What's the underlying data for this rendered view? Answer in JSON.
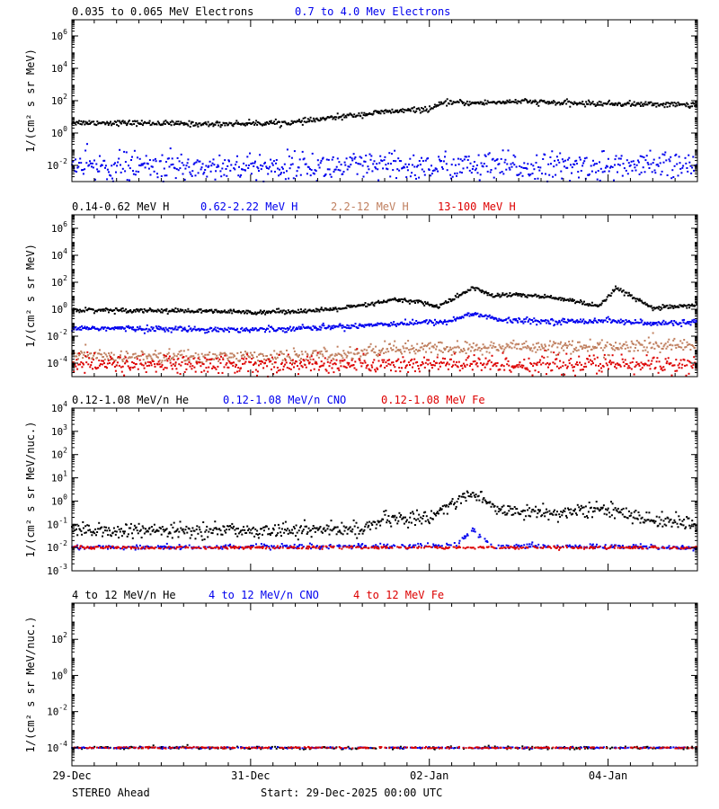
{
  "figure": {
    "footer_left": "STEREO Ahead",
    "footer_center": "Start: 29-Dec-2025 00:00 UTC",
    "x_ticks": [
      "29-Dec",
      "31-Dec",
      "02-Jan",
      "04-Jan"
    ],
    "x_tick_days": [
      0,
      2,
      4,
      6
    ],
    "x_range_days": [
      0,
      7.0
    ]
  },
  "chart_data": [
    {
      "type": "scatter",
      "ylabel": "1/(cm² s sr MeV)",
      "yscale": "log",
      "ylim_exp": [
        -3,
        7
      ],
      "y_ticks": [
        {
          "exp": -2
        },
        {
          "exp": 0
        },
        {
          "exp": 2
        },
        {
          "exp": 4
        },
        {
          "exp": 6
        }
      ],
      "series": [
        {
          "name": "0.035 to 0.065 MeV Electrons",
          "color": "#000000",
          "profile": [
            [
              0,
              4.5
            ],
            [
              1.0,
              4.0
            ],
            [
              1.5,
              3.5
            ],
            [
              2.5,
              4.5
            ],
            [
              3.0,
              10
            ],
            [
              3.5,
              20
            ],
            [
              4.0,
              30
            ],
            [
              4.2,
              80
            ],
            [
              4.5,
              70
            ],
            [
              5.0,
              90
            ],
            [
              5.5,
              70
            ],
            [
              6.0,
              65
            ],
            [
              7.0,
              55
            ]
          ],
          "spread": 0.08
        },
        {
          "name": "0.7 to 4.0 Mev Electrons",
          "color": "#0000ee",
          "profile": [
            [
              0,
              0.008
            ],
            [
              7.0,
              0.008
            ]
          ],
          "spread": 0.45
        }
      ]
    },
    {
      "type": "scatter",
      "ylabel": "1/(cm² s sr MeV)",
      "yscale": "log",
      "ylim_exp": [
        -5,
        7
      ],
      "y_ticks": [
        {
          "exp": -4
        },
        {
          "exp": -2
        },
        {
          "exp": 0
        },
        {
          "exp": 2
        },
        {
          "exp": 4
        },
        {
          "exp": 6
        }
      ],
      "series": [
        {
          "name": "0.14-0.62 MeV H",
          "color": "#000000",
          "profile": [
            [
              0,
              0.9
            ],
            [
              1.0,
              0.8
            ],
            [
              2.0,
              0.6
            ],
            [
              2.8,
              0.8
            ],
            [
              3.3,
              2.0
            ],
            [
              3.6,
              5.0
            ],
            [
              3.9,
              3.5
            ],
            [
              4.1,
              1.5
            ],
            [
              4.3,
              8
            ],
            [
              4.5,
              40
            ],
            [
              4.7,
              10
            ],
            [
              5.0,
              12
            ],
            [
              5.5,
              6
            ],
            [
              5.9,
              1.5
            ],
            [
              6.1,
              40
            ],
            [
              6.3,
              6
            ],
            [
              6.5,
              1.2
            ],
            [
              7.0,
              1.8
            ]
          ],
          "spread": 0.08
        },
        {
          "name": "0.62-2.22 MeV H",
          "color": "#0000ee",
          "profile": [
            [
              0,
              0.04
            ],
            [
              1.0,
              0.035
            ],
            [
              2.0,
              0.03
            ],
            [
              3.0,
              0.05
            ],
            [
              3.5,
              0.08
            ],
            [
              4.2,
              0.12
            ],
            [
              4.5,
              0.5
            ],
            [
              4.8,
              0.15
            ],
            [
              5.5,
              0.12
            ],
            [
              6.0,
              0.15
            ],
            [
              6.5,
              0.08
            ],
            [
              7.0,
              0.12
            ]
          ],
          "spread": 0.1
        },
        {
          "name": "2.2-12 MeV H",
          "color": "#c08060",
          "profile": [
            [
              0,
              0.0003
            ],
            [
              2.5,
              0.0003
            ],
            [
              3.2,
              0.0005
            ],
            [
              3.5,
              0.0012
            ],
            [
              4.5,
              0.0012
            ],
            [
              5.0,
              0.0018
            ],
            [
              6.0,
              0.0015
            ],
            [
              7.0,
              0.0025
            ]
          ],
          "spread": 0.25
        },
        {
          "name": "13-100 MeV H",
          "color": "#dd0000",
          "profile": [
            [
              0,
              8e-05
            ],
            [
              7.0,
              8e-05
            ]
          ],
          "spread": 0.35
        }
      ]
    },
    {
      "type": "scatter",
      "ylabel": "1/(cm² s sr MeV/nuc.)",
      "yscale": "log",
      "ylim_exp": [
        -3,
        4
      ],
      "y_ticks": [
        {
          "exp": -3
        },
        {
          "exp": -2
        },
        {
          "exp": -1
        },
        {
          "exp": 0
        },
        {
          "exp": 1
        },
        {
          "exp": 2
        },
        {
          "exp": 3
        },
        {
          "exp": 4
        }
      ],
      "series": [
        {
          "name": "0.12-1.08 MeV/n He",
          "color": "#000000",
          "profile": [
            [
              0,
              0.05
            ],
            [
              3.2,
              0.06
            ],
            [
              3.5,
              0.15
            ],
            [
              4.0,
              0.2
            ],
            [
              4.3,
              1.0
            ],
            [
              4.5,
              2.0
            ],
            [
              4.8,
              0.4
            ],
            [
              5.5,
              0.3
            ],
            [
              6.0,
              0.5
            ],
            [
              6.3,
              0.2
            ],
            [
              7.0,
              0.1
            ]
          ],
          "spread": 0.15
        },
        {
          "name": "0.12-1.08 MeV/n CNO",
          "color": "#0000ee",
          "profile": [
            [
              0,
              0.01
            ],
            [
              4.3,
              0.012
            ],
            [
              4.5,
              0.06
            ],
            [
              4.7,
              0.012
            ],
            [
              7.0,
              0.01
            ]
          ],
          "spread": 0.05
        },
        {
          "name": "0.12-1.08 MeV Fe",
          "color": "#dd0000",
          "profile": [
            [
              0,
              0.01
            ],
            [
              7.0,
              0.01
            ]
          ],
          "spread": 0.03
        }
      ]
    },
    {
      "type": "scatter",
      "ylabel": "1/(cm² s sr MeV/nuc.)",
      "yscale": "log",
      "ylim_exp": [
        -5,
        4
      ],
      "y_ticks": [
        {
          "exp": -4
        },
        {
          "exp": -2
        },
        {
          "exp": 0
        },
        {
          "exp": 2
        }
      ],
      "series": [
        {
          "name": "4 to 12 MeV/n He",
          "color": "#000000",
          "profile": [
            [
              0,
              0.0001
            ],
            [
              7.0,
              0.0001
            ]
          ],
          "spread": 0.04
        },
        {
          "name": "4 to 12 MeV/n CNO",
          "color": "#0000ee",
          "profile": [
            [
              0,
              0.0001
            ],
            [
              7.0,
              0.0001
            ]
          ],
          "spread": 0.02
        },
        {
          "name": "4 to 12 MeV Fe",
          "color": "#dd0000",
          "profile": [
            [
              0,
              0.0001
            ],
            [
              7.0,
              0.0001
            ]
          ],
          "spread": 0.02
        }
      ]
    }
  ]
}
